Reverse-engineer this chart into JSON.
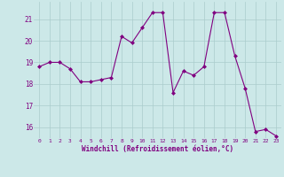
{
  "x": [
    0,
    1,
    2,
    3,
    4,
    5,
    6,
    7,
    8,
    9,
    10,
    11,
    12,
    13,
    14,
    15,
    16,
    17,
    18,
    19,
    20,
    21,
    22,
    23
  ],
  "y": [
    18.8,
    19.0,
    19.0,
    18.7,
    18.1,
    18.1,
    18.2,
    18.3,
    20.2,
    19.9,
    20.6,
    21.3,
    21.3,
    17.6,
    18.6,
    18.4,
    18.8,
    21.3,
    21.3,
    19.3,
    17.8,
    15.8,
    15.9,
    15.6
  ],
  "line_color": "#800080",
  "marker": "D",
  "marker_size": 2.0,
  "bg_color": "#cce8e8",
  "grid_color": "#aacccc",
  "xlabel": "Windchill (Refroidissement éolien,°C)",
  "xlabel_color": "#800080",
  "tick_color": "#800080",
  "label_color": "#800080",
  "ylim": [
    15.5,
    21.8
  ],
  "yticks": [
    16,
    17,
    18,
    19,
    20,
    21
  ],
  "xticks": [
    0,
    1,
    2,
    3,
    4,
    5,
    6,
    7,
    8,
    9,
    10,
    11,
    12,
    13,
    14,
    15,
    16,
    17,
    18,
    19,
    20,
    21,
    22,
    23
  ],
  "xlim": [
    -0.5,
    23.5
  ]
}
